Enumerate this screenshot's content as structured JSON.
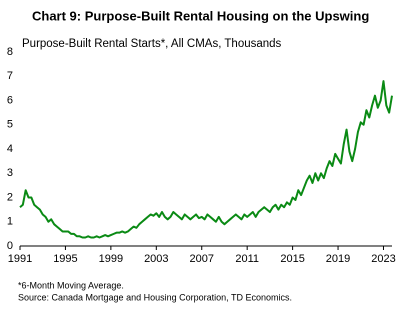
{
  "chart_data": {
    "type": "line",
    "title": "Chart 9: Purpose-Built Rental Housing on the Upswing",
    "subtitle": "Purpose-Built Rental Starts*, All CMAs, Thousands",
    "notes": [
      "*6-Month Moving Average.",
      "Source: Canada Mortgage and Housing Corporation, TD Economics."
    ],
    "x": [
      1991,
      1991.25,
      1991.5,
      1991.75,
      1992,
      1992.25,
      1992.5,
      1992.75,
      1993,
      1993.25,
      1993.5,
      1993.75,
      1994,
      1994.25,
      1994.5,
      1994.75,
      1995,
      1995.25,
      1995.5,
      1995.75,
      1996,
      1996.25,
      1996.5,
      1996.75,
      1997,
      1997.25,
      1997.5,
      1997.75,
      1998,
      1998.25,
      1998.5,
      1998.75,
      1999,
      1999.25,
      1999.5,
      1999.75,
      2000,
      2000.25,
      2000.5,
      2000.75,
      2001,
      2001.25,
      2001.5,
      2001.75,
      2002,
      2002.25,
      2002.5,
      2002.75,
      2003,
      2003.25,
      2003.5,
      2003.75,
      2004,
      2004.25,
      2004.5,
      2004.75,
      2005,
      2005.25,
      2005.5,
      2005.75,
      2006,
      2006.25,
      2006.5,
      2006.75,
      2007,
      2007.25,
      2007.5,
      2007.75,
      2008,
      2008.25,
      2008.5,
      2008.75,
      2009,
      2009.25,
      2009.5,
      2009.75,
      2010,
      2010.25,
      2010.5,
      2010.75,
      2011,
      2011.25,
      2011.5,
      2011.75,
      2012,
      2012.25,
      2012.5,
      2012.75,
      2013,
      2013.25,
      2013.5,
      2013.75,
      2014,
      2014.25,
      2014.5,
      2014.75,
      2015,
      2015.25,
      2015.5,
      2015.75,
      2016,
      2016.25,
      2016.5,
      2016.75,
      2017,
      2017.25,
      2017.5,
      2017.75,
      2018,
      2018.25,
      2018.5,
      2018.75,
      2019,
      2019.25,
      2019.5,
      2019.75,
      2020,
      2020.25,
      2020.5,
      2020.75,
      2021,
      2021.25,
      2021.5,
      2021.75,
      2022,
      2022.25,
      2022.5,
      2022.75,
      2023,
      2023.25,
      2023.5,
      2023.75
    ],
    "series": [
      {
        "name": "Purpose-Built Rental Starts",
        "color": "#0a8a14",
        "values": [
          1.6,
          1.7,
          2.3,
          2.0,
          2.0,
          1.7,
          1.6,
          1.5,
          1.3,
          1.2,
          1.0,
          1.1,
          0.9,
          0.8,
          0.7,
          0.6,
          0.6,
          0.6,
          0.5,
          0.5,
          0.4,
          0.4,
          0.35,
          0.35,
          0.4,
          0.35,
          0.35,
          0.4,
          0.35,
          0.4,
          0.45,
          0.4,
          0.45,
          0.5,
          0.55,
          0.55,
          0.6,
          0.55,
          0.6,
          0.7,
          0.8,
          0.75,
          0.9,
          1.0,
          1.1,
          1.2,
          1.3,
          1.25,
          1.35,
          1.2,
          1.4,
          1.2,
          1.1,
          1.2,
          1.4,
          1.3,
          1.2,
          1.1,
          1.3,
          1.2,
          1.1,
          1.2,
          1.3,
          1.15,
          1.2,
          1.1,
          1.3,
          1.2,
          1.1,
          1.0,
          1.2,
          1.0,
          0.9,
          1.0,
          1.1,
          1.2,
          1.3,
          1.2,
          1.1,
          1.3,
          1.2,
          1.3,
          1.4,
          1.2,
          1.4,
          1.5,
          1.6,
          1.5,
          1.4,
          1.6,
          1.7,
          1.5,
          1.7,
          1.6,
          1.8,
          1.7,
          2.0,
          1.9,
          2.3,
          2.1,
          2.4,
          2.7,
          2.9,
          2.6,
          3.0,
          2.7,
          3.0,
          2.8,
          3.2,
          3.5,
          3.3,
          3.8,
          3.6,
          3.4,
          4.2,
          4.8,
          3.9,
          3.5,
          4.0,
          4.7,
          5.1,
          5.0,
          5.6,
          5.3,
          5.8,
          6.2,
          5.7,
          6.0,
          6.8,
          5.8,
          5.5,
          6.2
        ]
      }
    ],
    "xlim": [
      1991,
      2023.75
    ],
    "xticks": [
      1991,
      1995,
      1999,
      2003,
      2007,
      2011,
      2015,
      2019,
      2023
    ],
    "ylim": [
      0,
      8
    ],
    "yticks": [
      0,
      1,
      2,
      3,
      4,
      5,
      6,
      7,
      8
    ],
    "grid": false
  }
}
